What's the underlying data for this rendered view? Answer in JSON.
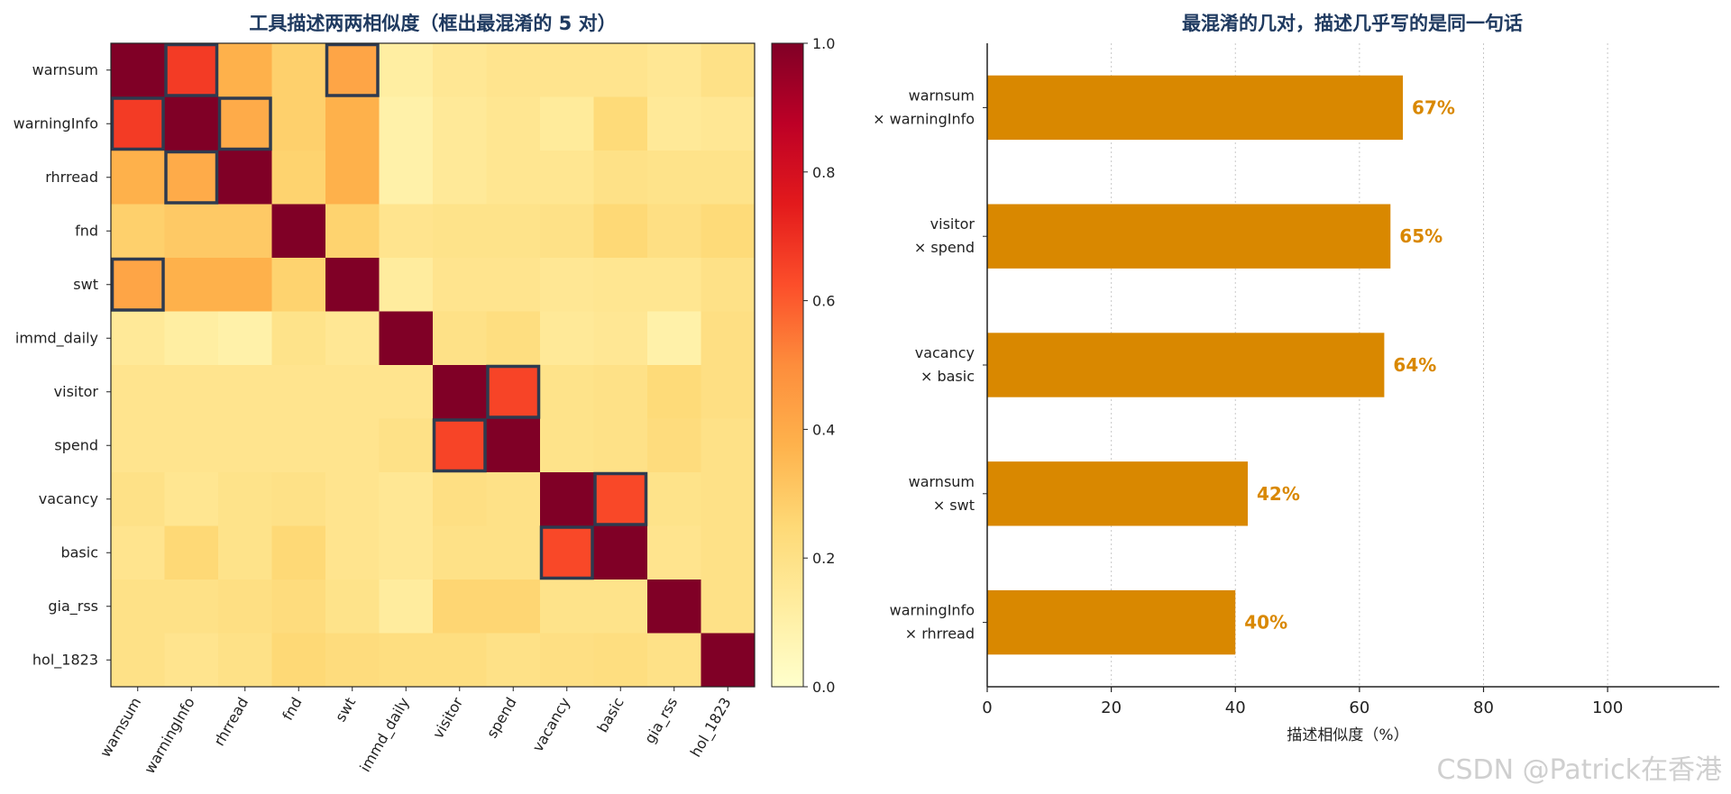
{
  "chart_data": [
    {
      "type": "heatmap",
      "title": "工具描述两两相似度（框出最混淆的 5 对）",
      "labels": [
        "warnsum",
        "warningInfo",
        "rhrread",
        "fnd",
        "swt",
        "immd_daily",
        "visitor",
        "spend",
        "vacancy",
        "basic",
        "gia_rss",
        "hol_1823"
      ],
      "matrix": [
        [
          1.0,
          0.67,
          0.38,
          0.28,
          0.42,
          0.12,
          0.16,
          0.18,
          0.18,
          0.18,
          0.16,
          0.2
        ],
        [
          0.67,
          1.0,
          0.4,
          0.28,
          0.38,
          0.1,
          0.15,
          0.17,
          0.14,
          0.24,
          0.15,
          0.16
        ],
        [
          0.38,
          0.4,
          1.0,
          0.27,
          0.38,
          0.1,
          0.15,
          0.17,
          0.17,
          0.2,
          0.19,
          0.19
        ],
        [
          0.28,
          0.3,
          0.3,
          1.0,
          0.27,
          0.18,
          0.19,
          0.19,
          0.2,
          0.25,
          0.21,
          0.24
        ],
        [
          0.42,
          0.38,
          0.38,
          0.27,
          1.0,
          0.13,
          0.18,
          0.18,
          0.16,
          0.17,
          0.17,
          0.2
        ],
        [
          0.15,
          0.12,
          0.1,
          0.19,
          0.16,
          1.0,
          0.2,
          0.22,
          0.15,
          0.16,
          0.1,
          0.21
        ],
        [
          0.18,
          0.18,
          0.18,
          0.18,
          0.18,
          0.18,
          1.0,
          0.65,
          0.19,
          0.2,
          0.24,
          0.21
        ],
        [
          0.18,
          0.18,
          0.18,
          0.18,
          0.18,
          0.2,
          0.65,
          1.0,
          0.19,
          0.2,
          0.23,
          0.2
        ],
        [
          0.2,
          0.17,
          0.19,
          0.2,
          0.18,
          0.16,
          0.21,
          0.2,
          1.0,
          0.64,
          0.19,
          0.2
        ],
        [
          0.18,
          0.25,
          0.19,
          0.25,
          0.18,
          0.16,
          0.2,
          0.2,
          0.64,
          1.0,
          0.18,
          0.2
        ],
        [
          0.2,
          0.2,
          0.21,
          0.23,
          0.19,
          0.13,
          0.26,
          0.26,
          0.19,
          0.19,
          1.0,
          0.2
        ],
        [
          0.2,
          0.18,
          0.2,
          0.25,
          0.23,
          0.22,
          0.22,
          0.2,
          0.21,
          0.22,
          0.2,
          1.0
        ]
      ],
      "highlighted_pairs": [
        [
          0,
          1
        ],
        [
          6,
          7
        ],
        [
          8,
          9
        ],
        [
          0,
          4
        ],
        [
          1,
          2
        ]
      ],
      "colorbar": {
        "range": [
          0.0,
          1.0
        ],
        "ticks": [
          "0.0",
          "0.2",
          "0.4",
          "0.6",
          "0.8",
          "1.0"
        ]
      },
      "colormap": [
        "#ffffcc",
        "#ffeda0",
        "#fed976",
        "#feb24c",
        "#fd8d3c",
        "#fc4e2a",
        "#e31a1c",
        "#bd0026",
        "#800026"
      ],
      "frame_color": "#2e3a4f"
    },
    {
      "type": "bar",
      "orientation": "horizontal",
      "title": "最混淆的几对，描述几乎写的是同一句话",
      "categories": [
        [
          "warnsum",
          "× warningInfo"
        ],
        [
          "visitor",
          "× spend"
        ],
        [
          "vacancy",
          "× basic"
        ],
        [
          "warnsum",
          "× swt"
        ],
        [
          "warningInfo",
          "× rhrread"
        ]
      ],
      "values": [
        67,
        65,
        64,
        42,
        40
      ],
      "value_labels": [
        "67%",
        "65%",
        "64%",
        "42%",
        "40%"
      ],
      "xlabel": "描述相似度（%）",
      "xlim": [
        0,
        118
      ],
      "xticks": [
        0,
        20,
        40,
        60,
        80,
        100
      ],
      "bar_color": "#d98800",
      "grid": "x dotted"
    }
  ],
  "watermark": "CSDN @Patrick在香港"
}
